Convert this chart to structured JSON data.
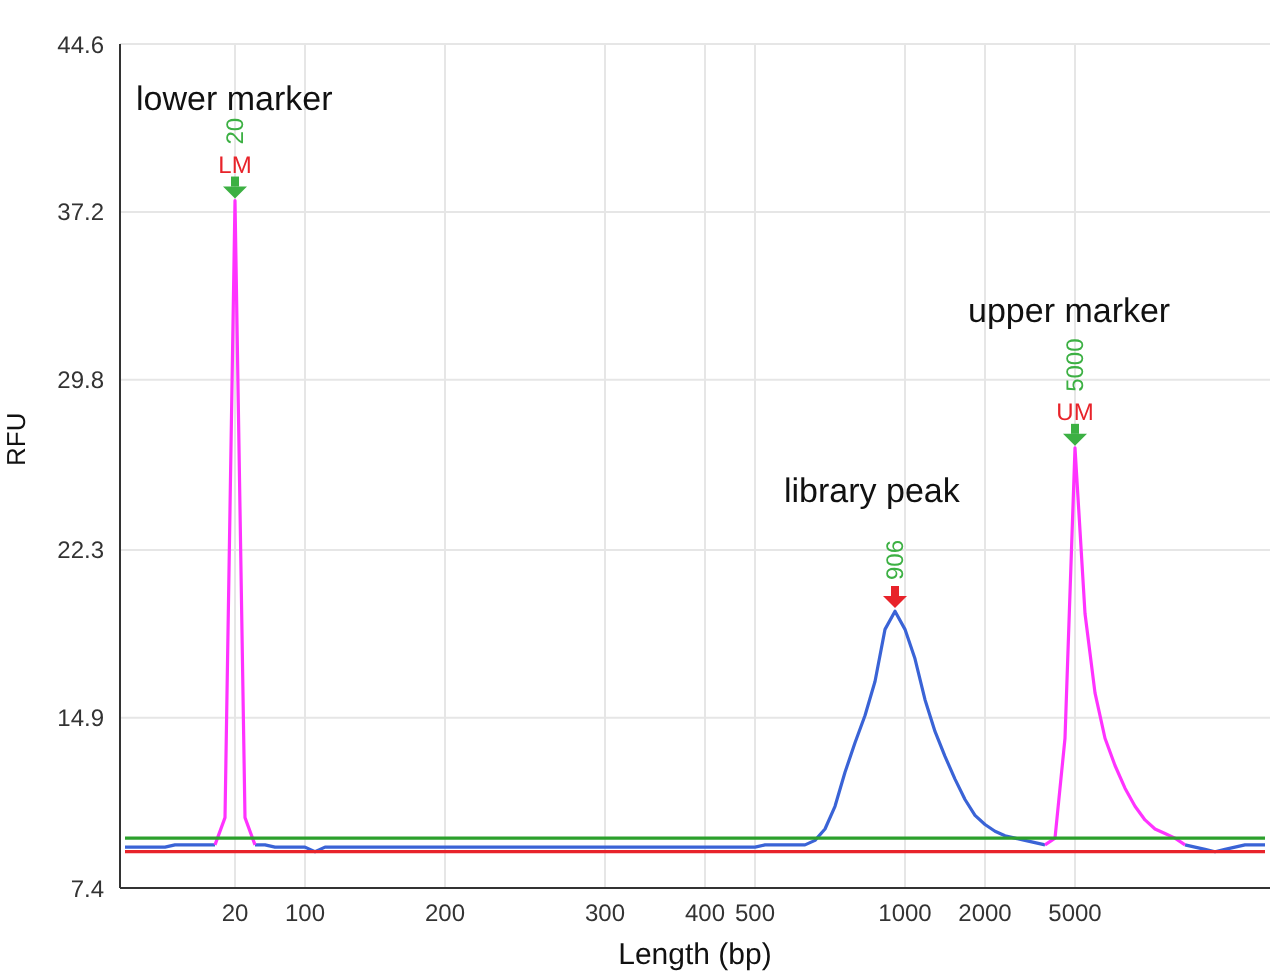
{
  "chart_data": {
    "type": "line",
    "xlabel": "Length (bp)",
    "ylabel": "RFU",
    "categories": [
      null,
      null,
      null,
      null,
      null,
      null,
      null,
      null,
      null,
      null,
      null,
      "20",
      null,
      null,
      null,
      null,
      null,
      null,
      "100",
      null,
      null,
      null,
      null,
      null,
      null,
      null,
      null,
      null,
      null,
      null,
      null,
      null,
      "200",
      null,
      null,
      null,
      null,
      null,
      null,
      null,
      null,
      null,
      null,
      null,
      null,
      null,
      null,
      null,
      "300",
      null,
      null,
      null,
      null,
      null,
      null,
      null,
      null,
      null,
      "400",
      null,
      null,
      null,
      null,
      "500",
      null,
      null,
      null,
      null,
      null,
      null,
      null,
      null,
      null,
      null,
      null,
      null,
      null,
      null,
      "1000",
      null,
      null,
      null,
      null,
      null,
      null,
      null,
      "2000",
      null,
      null,
      null,
      null,
      null,
      null,
      null,
      null,
      "5000",
      null,
      null,
      null,
      null,
      null,
      null,
      null,
      null,
      null,
      null,
      null,
      null,
      null,
      null,
      null,
      null,
      null,
      null,
      null
    ],
    "series": [
      {
        "color": "#3a63d6",
        "values": [
          9.2,
          9.2,
          9.2,
          9.2,
          9.2,
          9.3,
          9.3,
          9.3,
          9.3,
          9.3,
          null,
          null,
          null,
          9.3,
          9.3,
          9.2,
          9.2,
          9.2,
          9.2,
          9.0,
          9.2,
          9.2,
          9.2,
          9.2,
          9.2,
          9.2,
          9.2,
          9.2,
          9.2,
          9.2,
          9.2,
          9.2,
          9.2,
          9.2,
          9.2,
          9.2,
          9.2,
          9.2,
          9.2,
          9.2,
          9.2,
          9.2,
          9.2,
          9.2,
          9.2,
          9.2,
          9.2,
          9.2,
          9.2,
          9.2,
          9.2,
          9.2,
          9.2,
          9.2,
          9.2,
          9.2,
          9.2,
          9.2,
          9.2,
          9.2,
          9.2,
          9.2,
          9.2,
          9.2,
          9.3,
          9.3,
          9.3,
          9.3,
          9.3,
          9.5,
          10,
          11,
          12.5,
          13.8,
          15,
          16.5,
          18.8,
          19.6,
          18.8,
          17.5,
          15.7,
          14.3,
          13.2,
          12.2,
          11.3,
          10.6,
          10.2,
          9.9,
          9.7,
          9.6,
          9.5,
          9.4,
          9.3,
          null,
          null,
          null,
          null,
          null,
          null,
          null,
          null,
          null,
          null,
          null,
          null,
          null,
          9.3,
          9.2,
          9.1,
          9.0,
          9.1,
          9.2,
          9.3,
          9.3,
          9.3
        ]
      },
      {
        "color": "#ff33ff",
        "values": [
          null,
          null,
          null,
          null,
          null,
          null,
          null,
          null,
          null,
          9.3,
          10.5,
          37.7,
          10.5,
          9.3,
          null,
          null,
          null,
          null,
          null,
          null,
          null,
          null,
          null,
          null,
          null,
          null,
          null,
          null,
          null,
          null,
          null,
          null,
          null,
          null,
          null,
          null,
          null,
          null,
          null,
          null,
          null,
          null,
          null,
          null,
          null,
          null,
          null,
          null,
          null,
          null,
          null,
          null,
          null,
          null,
          null,
          null,
          null,
          null,
          null,
          null,
          null,
          null,
          null,
          null,
          null,
          null,
          null,
          null,
          null,
          null,
          null,
          null,
          null,
          null,
          null,
          null,
          null,
          null,
          null,
          null,
          null,
          null,
          null,
          null,
          null,
          null,
          null,
          null,
          null,
          null,
          null,
          null,
          9.3,
          9.6,
          14,
          26.8,
          19.5,
          16,
          14,
          12.8,
          11.8,
          11,
          10.4,
          10,
          9.8,
          9.6,
          9.3,
          null,
          null,
          null,
          null,
          null,
          null,
          null,
          null
        ]
      },
      {
        "color": "#2ca02c",
        "values": [
          9.6,
          9.6,
          9.6,
          9.6,
          9.6,
          9.6,
          9.6,
          9.6,
          9.6,
          9.6,
          9.6,
          9.6,
          9.6,
          9.6,
          9.6,
          9.6,
          9.6,
          9.6,
          9.6,
          9.6,
          9.6,
          9.6,
          9.6,
          9.6,
          9.6,
          9.6,
          9.6,
          9.6,
          9.6,
          9.6,
          9.6,
          9.6,
          9.6,
          9.6,
          9.6,
          9.6,
          9.6,
          9.6,
          9.6,
          9.6,
          9.6,
          9.6,
          9.6,
          9.6,
          9.6,
          9.6,
          9.6,
          9.6,
          9.6,
          9.6,
          9.6,
          9.6,
          9.6,
          9.6,
          9.6,
          9.6,
          9.6,
          9.6,
          9.6,
          9.6,
          9.6,
          9.6,
          9.6,
          9.6,
          9.6,
          9.6,
          9.6,
          9.6,
          9.6,
          9.6,
          9.6,
          9.6,
          9.6,
          9.6,
          9.6,
          9.6,
          9.6,
          9.6,
          9.6,
          9.6,
          9.6,
          9.6,
          9.6,
          9.6,
          9.6,
          9.6,
          9.6,
          9.6,
          9.6,
          9.6,
          9.6,
          9.6,
          9.6,
          9.6,
          9.6,
          9.6,
          9.6,
          9.6,
          9.6,
          9.6,
          9.6,
          9.6,
          9.6,
          9.6,
          9.6,
          9.6,
          9.6,
          9.6,
          9.6,
          9.6,
          9.6,
          9.6,
          9.6,
          9.6,
          9.6
        ]
      },
      {
        "color": "#e8232a",
        "values": [
          9.0,
          9.0,
          9.0,
          9.0,
          9.0,
          9.0,
          9.0,
          9.0,
          9.0,
          9.0,
          9.0,
          9.0,
          9.0,
          9.0,
          9.0,
          9.0,
          9.0,
          9.0,
          9.0,
          9.0,
          9.0,
          9.0,
          9.0,
          9.0,
          9.0,
          9.0,
          9.0,
          9.0,
          9.0,
          9.0,
          9.0,
          9.0,
          9.0,
          9.0,
          9.0,
          9.0,
          9.0,
          9.0,
          9.0,
          9.0,
          9.0,
          9.0,
          9.0,
          9.0,
          9.0,
          9.0,
          9.0,
          9.0,
          9.0,
          9.0,
          9.0,
          9.0,
          9.0,
          9.0,
          9.0,
          9.0,
          9.0,
          9.0,
          9.0,
          9.0,
          9.0,
          9.0,
          9.0,
          9.0,
          9.0,
          9.0,
          9.0,
          9.0,
          9.0,
          9.0,
          9.0,
          9.0,
          9.0,
          9.0,
          9.0,
          9.0,
          9.0,
          9.0,
          9.0,
          9.0,
          9.0,
          9.0,
          9.0,
          9.0,
          9.0,
          9.0,
          9.0,
          9.0,
          9.0,
          9.0,
          9.0,
          9.0,
          9.0,
          9.0,
          9.0,
          9.0,
          9.0,
          9.0,
          9.0,
          9.0,
          9.0,
          9.0,
          9.0,
          9.0,
          9.0,
          9.0,
          9.0,
          9.0,
          9.0,
          9.0,
          9.0,
          9.0,
          9.0,
          9.0,
          9.0
        ]
      }
    ],
    "annotations": [
      "lower marker",
      {
        "text": "LM",
        "x": "20",
        "y": 37.7
      },
      {
        "text": "20",
        "x": "20",
        "y": 37.7
      },
      "library peak",
      "906",
      "upper marker",
      {
        "text": "UM",
        "x": "5000",
        "y": 26.8
      },
      {
        "text": "5000",
        "x": "5000",
        "y": 26.8
      }
    ],
    "ylim": [
      7.4,
      44.6
    ],
    "yticks": [
      7.4,
      14.9,
      22.3,
      29.8,
      37.2,
      44.6
    ],
    "grid": true
  }
}
